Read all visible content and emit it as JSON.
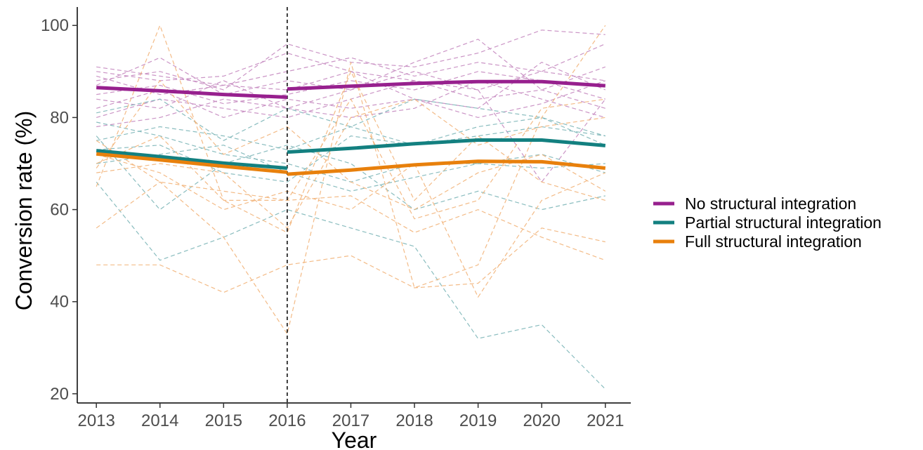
{
  "chart_data": {
    "type": "line",
    "title": "",
    "xlabel": "Year",
    "ylabel": "Conversion rate (%)",
    "x": [
      2013,
      2014,
      2015,
      2016,
      2017,
      2018,
      2019,
      2020,
      2021
    ],
    "xlim": [
      2012.7,
      2021.4
    ],
    "ylim": [
      18,
      104
    ],
    "yticks": [
      20,
      40,
      60,
      80,
      100
    ],
    "xticks": [
      2013,
      2014,
      2015,
      2016,
      2017,
      2018,
      2019,
      2020,
      2021
    ],
    "grid": false,
    "legend_position": "right",
    "vertical_reference_line": {
      "x": 2016,
      "style": "dashed",
      "color": "#000000"
    },
    "series": [
      {
        "name": "No structural integration",
        "color": "#97208E",
        "segments": [
          {
            "x": [
              2013,
              2014,
              2015,
              2016
            ],
            "y": [
              86.5,
              85.8,
              85.0,
              84.4
            ]
          },
          {
            "x": [
              2016,
              2017,
              2018,
              2019,
              2020,
              2021
            ],
            "y": [
              86.2,
              86.8,
              87.4,
              87.8,
              87.8,
              86.9
            ]
          }
        ]
      },
      {
        "name": "Partial structural integration",
        "color": "#138080",
        "segments": [
          {
            "x": [
              2013,
              2014,
              2015,
              2016
            ],
            "y": [
              72.8,
              71.5,
              70.1,
              69.0
            ]
          },
          {
            "x": [
              2016,
              2017,
              2018,
              2019,
              2020,
              2021
            ],
            "y": [
              72.5,
              73.3,
              74.3,
              75.1,
              75.1,
              73.9
            ]
          }
        ]
      },
      {
        "name": "Full structural integration",
        "color": "#E8800C",
        "segments": [
          {
            "x": [
              2013,
              2014,
              2015,
              2016
            ],
            "y": [
              72.1,
              70.8,
              69.4,
              68.1
            ]
          },
          {
            "x": [
              2016,
              2017,
              2018,
              2019,
              2020,
              2021
            ],
            "y": [
              67.7,
              68.6,
              69.7,
              70.5,
              70.4,
              69.0
            ]
          }
        ]
      }
    ],
    "individual_series": [
      {
        "group": "No structural integration",
        "color": "#C58AC0",
        "y": [
          91,
          89,
          87,
          90,
          93,
          89,
          92,
          90,
          88
        ]
      },
      {
        "group": "No structural integration",
        "color": "#C58AC0",
        "y": [
          88,
          90,
          86,
          96,
          92,
          91,
          94,
          99,
          98
        ]
      },
      {
        "group": "No structural integration",
        "color": "#C58AC0",
        "y": [
          85,
          87,
          83,
          85,
          88,
          86,
          90,
          88,
          84
        ]
      },
      {
        "group": "No structural integration",
        "color": "#C58AC0",
        "y": [
          90,
          88,
          89,
          94,
          90,
          88,
          86,
          90,
          96
        ]
      },
      {
        "group": "No structural integration",
        "color": "#C58AC0",
        "y": [
          80,
          84,
          82,
          80,
          84,
          88,
          84,
          86,
          82
        ]
      },
      {
        "group": "No structural integration",
        "color": "#C58AC0",
        "y": [
          84,
          82,
          88,
          82,
          80,
          82,
          88,
          84,
          80
        ]
      },
      {
        "group": "No structural integration",
        "color": "#C58AC0",
        "y": [
          87,
          93,
          85,
          88,
          86,
          92,
          97,
          86,
          91
        ]
      },
      {
        "group": "No structural integration",
        "color": "#C58AC0",
        "y": [
          82,
          86,
          80,
          84,
          82,
          84,
          82,
          92,
          86
        ]
      },
      {
        "group": "No structural integration",
        "color": "#C58AC0",
        "y": [
          89,
          85,
          87,
          86,
          90,
          84,
          80,
          83,
          88
        ]
      },
      {
        "group": "No structural integration",
        "color": "#C58AC0",
        "y": [
          78,
          80,
          84,
          82,
          86,
          90,
          86,
          66,
          84
        ]
      },
      {
        "group": "Partial structural integration",
        "color": "#7DB6B8",
        "y": [
          75,
          78,
          76,
          73,
          78,
          74,
          76,
          78,
          76
        ]
      },
      {
        "group": "Partial structural integration",
        "color": "#7DB6B8",
        "y": [
          66,
          49,
          54,
          60,
          56,
          52,
          32,
          35,
          21
        ]
      },
      {
        "group": "Partial structural integration",
        "color": "#7DB6B8",
        "y": [
          76,
          60,
          70,
          74,
          70,
          60,
          64,
          60,
          63
        ]
      },
      {
        "group": "Partial structural integration",
        "color": "#7DB6B8",
        "y": [
          81,
          84,
          75,
          82,
          78,
          84,
          82,
          80,
          76
        ]
      },
      {
        "group": "Partial structural integration",
        "color": "#7DB6B8",
        "y": [
          79,
          76,
          72,
          70,
          66,
          70,
          70,
          72,
          68
        ]
      },
      {
        "group": "Partial structural integration",
        "color": "#7DB6B8",
        "y": [
          70,
          72,
          74,
          68,
          64,
          67,
          70,
          69,
          70
        ]
      },
      {
        "group": "Partial structural integration",
        "color": "#7DB6B8",
        "y": [
          73,
          74,
          68,
          66,
          76,
          74,
          78,
          80,
          74
        ]
      },
      {
        "group": "Full structural integration",
        "color": "#F2B47A",
        "y": [
          48,
          48,
          42,
          48,
          50,
          43,
          44,
          56,
          53
        ]
      },
      {
        "group": "Full structural integration",
        "color": "#F2B47A",
        "y": [
          56,
          66,
          54,
          33,
          92,
          43,
          48,
          80,
          100
        ]
      },
      {
        "group": "Full structural integration",
        "color": "#F2B47A",
        "y": [
          65,
          100,
          62,
          62,
          63,
          55,
          60,
          54,
          49
        ]
      },
      {
        "group": "Full structural integration",
        "color": "#F2B47A",
        "y": [
          69,
          88,
          72,
          78,
          66,
          60,
          68,
          72,
          64
        ]
      },
      {
        "group": "Full structural integration",
        "color": "#F2B47A",
        "y": [
          72,
          68,
          60,
          64,
          60,
          70,
          41,
          62,
          68
        ]
      },
      {
        "group": "Full structural integration",
        "color": "#F2B47A",
        "y": [
          68,
          70,
          68,
          56,
          80,
          84,
          74,
          78,
          80
        ]
      },
      {
        "group": "Full structural integration",
        "color": "#F2B47A",
        "y": [
          75,
          66,
          64,
          62,
          84,
          58,
          62,
          82,
          84
        ]
      },
      {
        "group": "Full structural integration",
        "color": "#F2B47A",
        "y": [
          70,
          76,
          62,
          55,
          90,
          62,
          76,
          66,
          62
        ]
      }
    ]
  }
}
